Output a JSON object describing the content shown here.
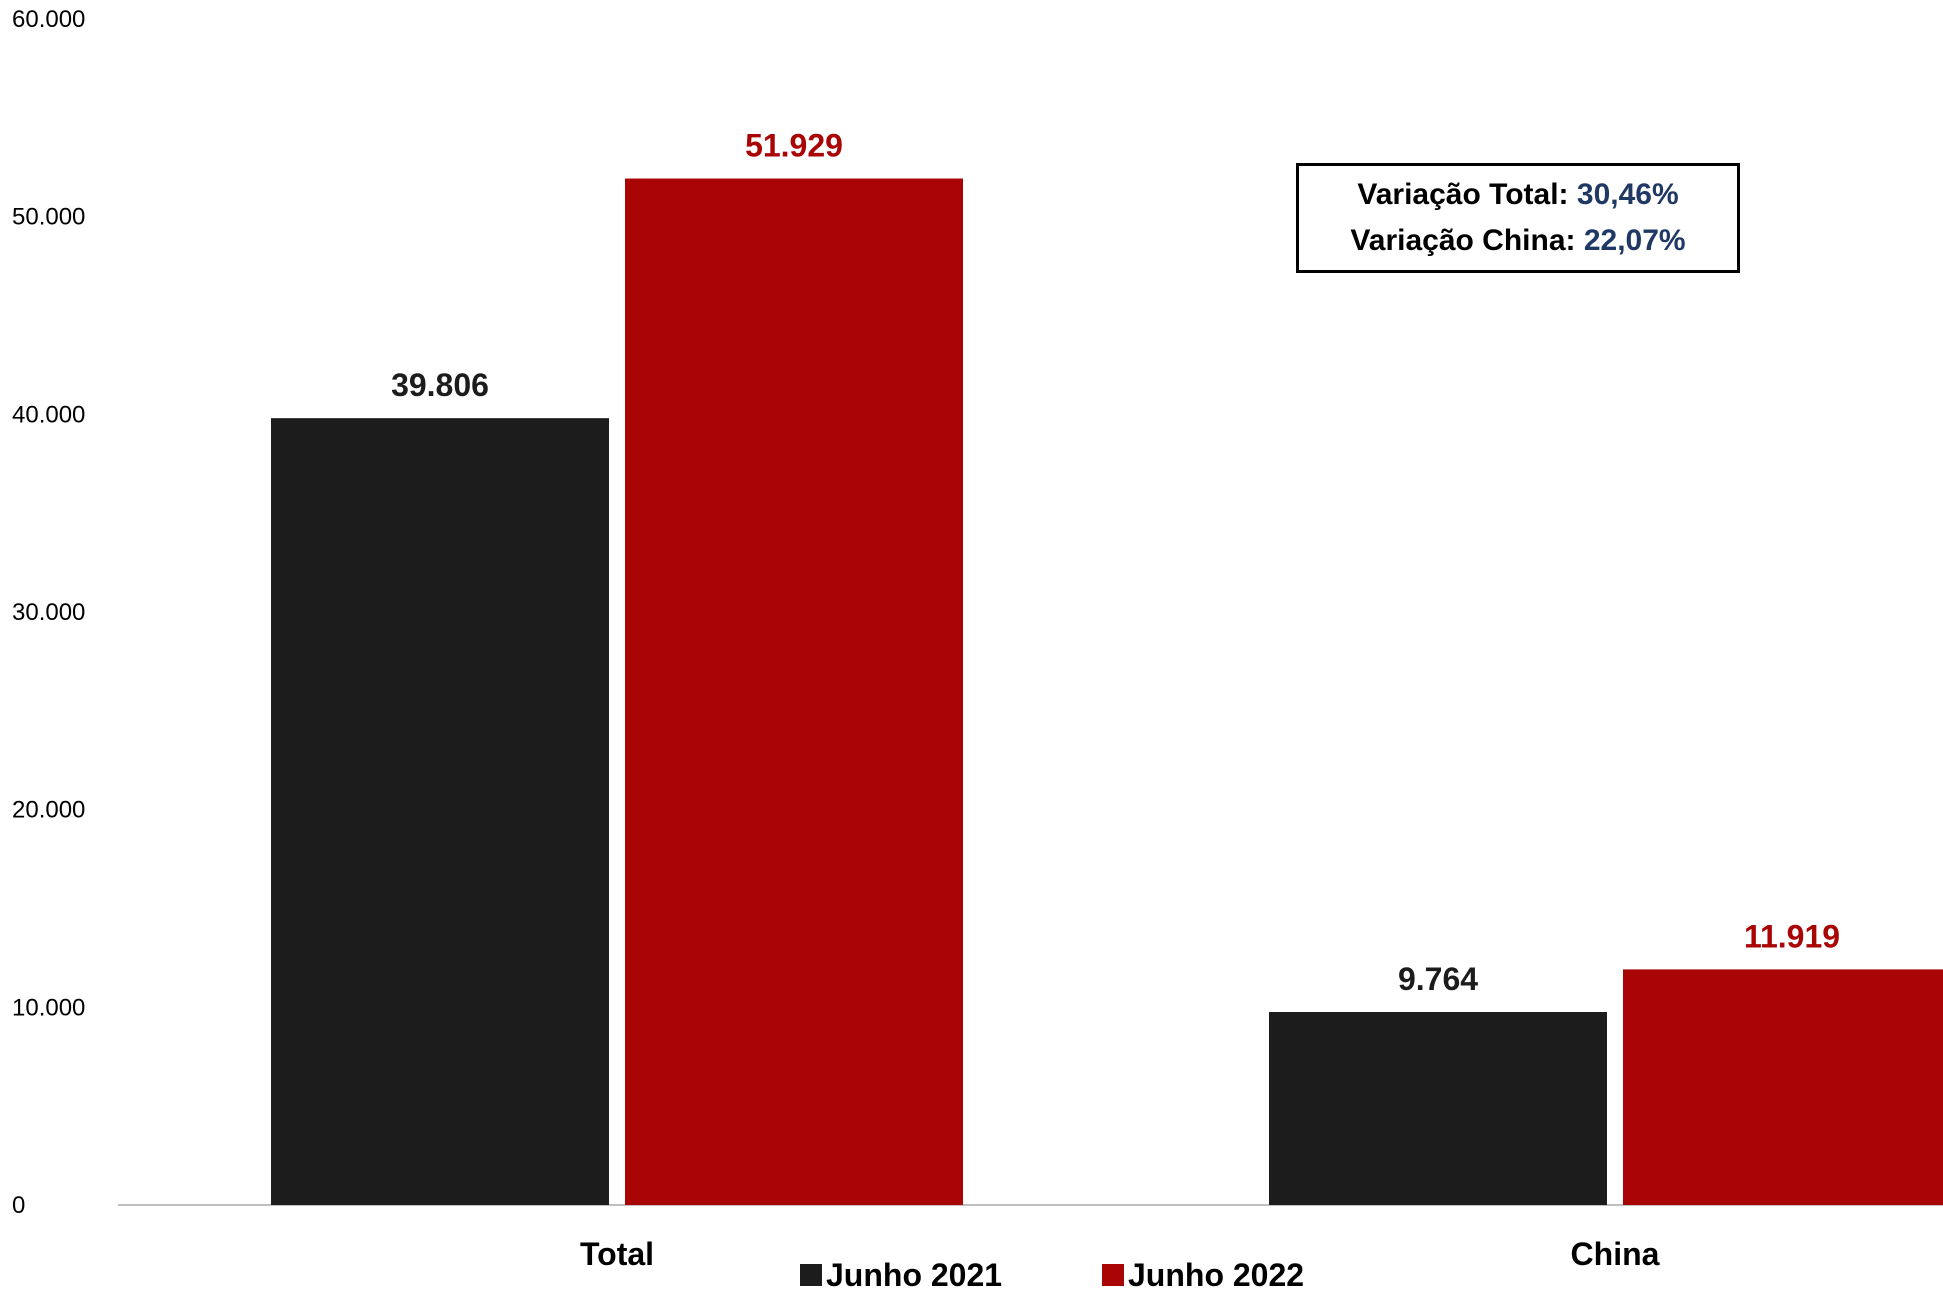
{
  "chart_data": {
    "type": "bar",
    "categories": [
      "Total",
      "China"
    ],
    "series": [
      {
        "name": "Junho 2021",
        "color": "#1C1C1C",
        "values": [
          39806,
          9764
        ],
        "labels": [
          "39.806",
          "9.764"
        ],
        "label_color": "#1C1C1C"
      },
      {
        "name": "Junho 2022",
        "color": "#AA0505",
        "values": [
          51929,
          11919
        ],
        "labels": [
          "51.929",
          "11.919"
        ],
        "label_color": "#AA0505"
      }
    ],
    "ylim": [
      0,
      60000
    ],
    "yticks": [
      0,
      10000,
      20000,
      30000,
      40000,
      50000,
      60000
    ],
    "ytick_labels": [
      "0",
      "10.000",
      "20.000",
      "30.000",
      "40.000",
      "50.000",
      "60.000"
    ],
    "title": "",
    "xlabel": "",
    "ylabel": "",
    "grid": false,
    "legend_position": "bottom",
    "annotations": [
      {
        "label": "Variação Total:",
        "value": "30,46%"
      },
      {
        "label": "Variação China:",
        "value": "22,07%"
      }
    ]
  }
}
